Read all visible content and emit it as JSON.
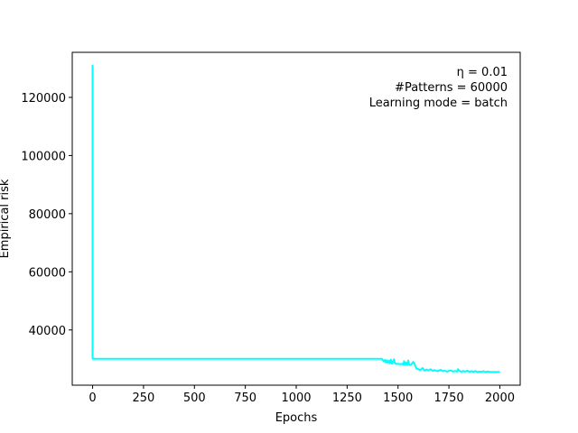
{
  "chart_data": {
    "type": "line",
    "title": "",
    "xlabel": "Epochs",
    "ylabel": "Empirical risk",
    "xlim": [
      -100,
      2100
    ],
    "ylim": [
      21000,
      135500
    ],
    "xticks": [
      0,
      250,
      500,
      750,
      1000,
      1250,
      1500,
      1750,
      2000
    ],
    "xtick_labels": [
      "0",
      "250",
      "500",
      "750",
      "1000",
      "1250",
      "1500",
      "1750",
      "2000"
    ],
    "yticks": [
      40000,
      60000,
      80000,
      100000,
      120000
    ],
    "ytick_labels": [
      "40000",
      "60000",
      "80000",
      "100000",
      "120000"
    ],
    "grid": false,
    "legend": "none",
    "color": "#00ffff",
    "annotations": [
      "η = 0.01",
      "#Patterns = 60000",
      "Learning mode = batch"
    ],
    "annotation_placement": "top-right",
    "series": [
      {
        "x": [
          0,
          0,
          1,
          50,
          200,
          400,
          600,
          800,
          1000,
          1200,
          1420,
          1430,
          1435,
          1440,
          1445,
          1450,
          1455,
          1460,
          1465,
          1470,
          1475,
          1480,
          1485,
          1490,
          1495,
          1500,
          1505,
          1510,
          1515,
          1520,
          1525,
          1530,
          1535,
          1540,
          1545,
          1550,
          1555,
          1560,
          1565,
          1570,
          1575,
          1580,
          1585,
          1590,
          1600,
          1605,
          1610,
          1620,
          1630,
          1640,
          1650,
          1660,
          1670,
          1680,
          1690,
          1700,
          1710,
          1720,
          1730,
          1740,
          1750,
          1760,
          1770,
          1780,
          1790,
          1795,
          1800,
          1810,
          1820,
          1830,
          1840,
          1850,
          1860,
          1870,
          1880,
          1890,
          1900,
          1910,
          1920,
          1930,
          1940,
          1950,
          1960,
          1970,
          1980,
          1990,
          2000
        ],
        "y": [
          131200,
          30200,
          30100,
          30100,
          30100,
          30100,
          30100,
          30100,
          30100,
          30100,
          30100,
          29200,
          29700,
          28800,
          29600,
          28700,
          29400,
          28500,
          29800,
          28400,
          29200,
          29900,
          28600,
          28300,
          28400,
          28400,
          28200,
          28300,
          28200,
          28400,
          28100,
          29300,
          28000,
          28800,
          28000,
          29500,
          28000,
          28000,
          28100,
          28600,
          29000,
          28600,
          27500,
          26800,
          26500,
          26300,
          26200,
          26900,
          26000,
          26400,
          26100,
          26500,
          25900,
          26200,
          25800,
          26000,
          26300,
          25800,
          26000,
          25700,
          25900,
          26100,
          25700,
          25900,
          25700,
          26500,
          26000,
          25600,
          25900,
          25700,
          26000,
          25600,
          25800,
          25600,
          25900,
          25500,
          25700,
          25600,
          25800,
          25500,
          25700,
          25600,
          25500,
          25600,
          25500,
          25600,
          25500
        ]
      }
    ]
  }
}
